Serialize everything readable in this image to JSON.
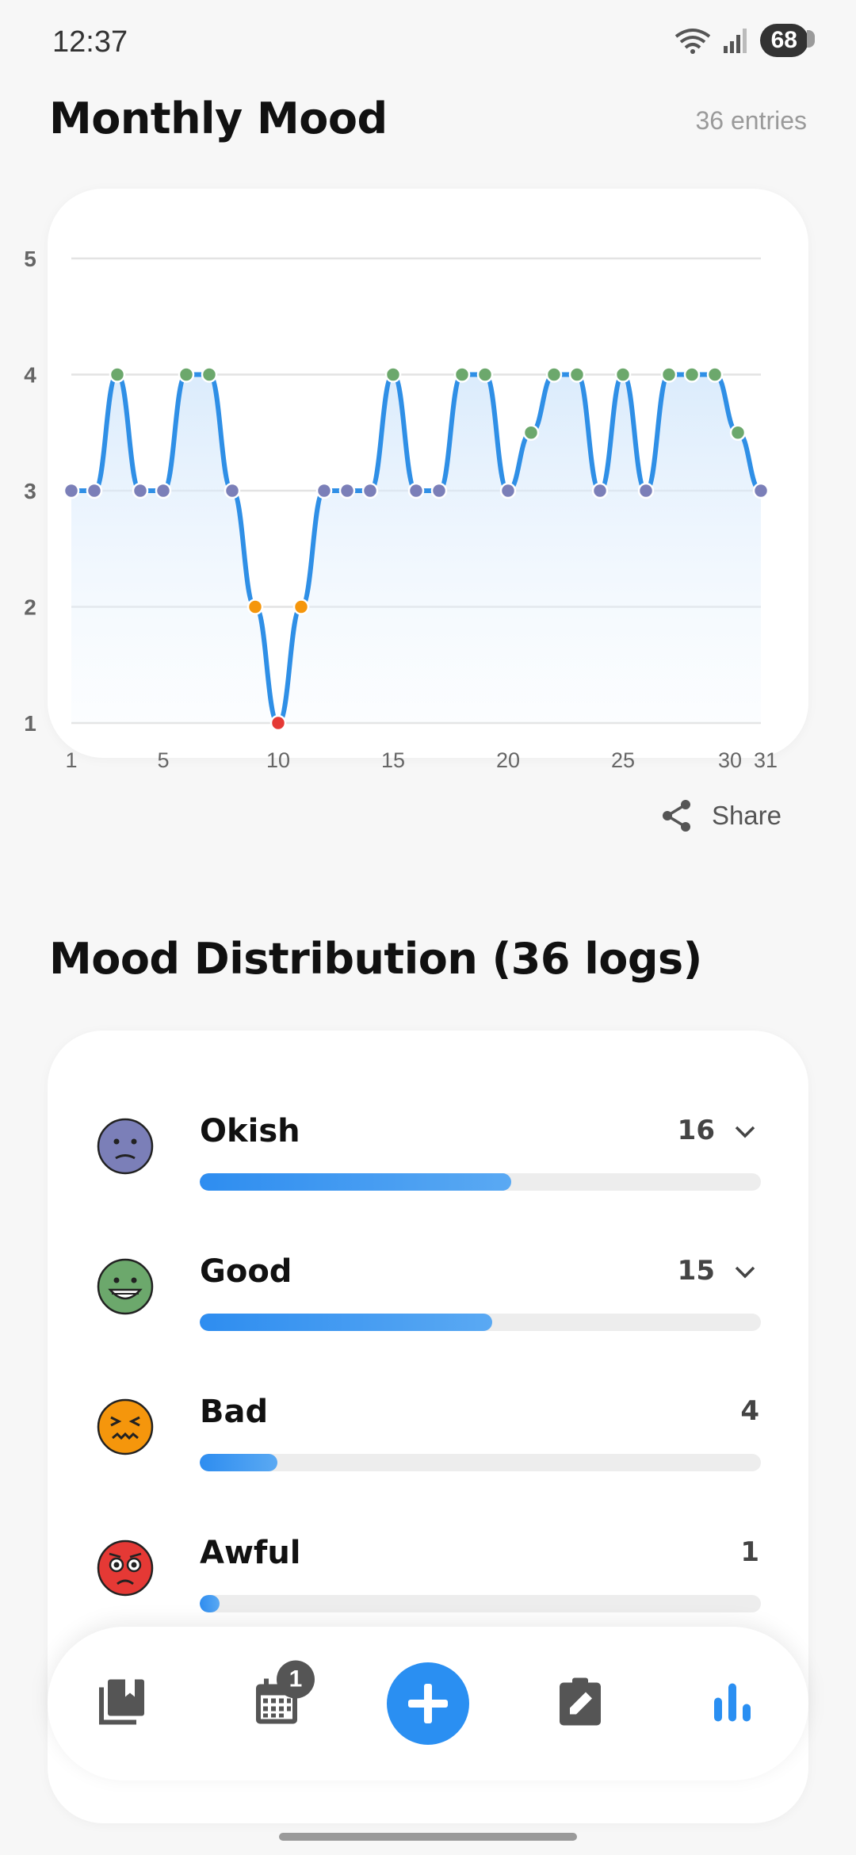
{
  "status_bar": {
    "time": "12:37",
    "battery": "68"
  },
  "header": {
    "title": "Monthly Mood",
    "entries": "36 entries"
  },
  "chart_data": {
    "type": "line",
    "title": "",
    "xlabel": "",
    "ylabel": "",
    "x_ticks": [
      1,
      5,
      10,
      15,
      20,
      25,
      30,
      31
    ],
    "y_ticks": [
      1,
      2,
      3,
      4,
      5
    ],
    "xlim": [
      1,
      31
    ],
    "ylim": [
      1,
      5
    ],
    "grid": true,
    "smooth": true,
    "line_color": "#2f8fe6",
    "mood_colors": {
      "1": "#e53935",
      "2": "#f5960c",
      "3": "#7b7fb8",
      "4": "#6ca86c"
    },
    "points": [
      {
        "x": 1,
        "y": 3
      },
      {
        "x": 2,
        "y": 3
      },
      {
        "x": 3,
        "y": 4
      },
      {
        "x": 4,
        "y": 3
      },
      {
        "x": 5,
        "y": 3
      },
      {
        "x": 6,
        "y": 4
      },
      {
        "x": 7,
        "y": 4
      },
      {
        "x": 8,
        "y": 3
      },
      {
        "x": 9,
        "y": 2
      },
      {
        "x": 10,
        "y": 1
      },
      {
        "x": 11,
        "y": 2
      },
      {
        "x": 12,
        "y": 3
      },
      {
        "x": 13,
        "y": 3
      },
      {
        "x": 14,
        "y": 3
      },
      {
        "x": 15,
        "y": 4
      },
      {
        "x": 16,
        "y": 3
      },
      {
        "x": 17,
        "y": 3
      },
      {
        "x": 18,
        "y": 4
      },
      {
        "x": 19,
        "y": 4
      },
      {
        "x": 20,
        "y": 3
      },
      {
        "x": 21,
        "y": 3.5
      },
      {
        "x": 22,
        "y": 4
      },
      {
        "x": 23,
        "y": 4
      },
      {
        "x": 24,
        "y": 3
      },
      {
        "x": 25,
        "y": 4
      },
      {
        "x": 26,
        "y": 3
      },
      {
        "x": 27,
        "y": 4
      },
      {
        "x": 28,
        "y": 4
      },
      {
        "x": 29,
        "y": 4
      },
      {
        "x": 30,
        "y": 3.5
      },
      {
        "x": 31,
        "y": 3
      }
    ]
  },
  "share": {
    "label": "Share"
  },
  "distribution": {
    "title": "Mood Distribution (36 logs)",
    "max_count": 36,
    "items": [
      {
        "label": "Okish",
        "count": "16",
        "value": 16,
        "face": "okish",
        "color": "#7b7fb8",
        "expandable": true
      },
      {
        "label": "Good",
        "count": "15",
        "value": 15,
        "face": "good",
        "color": "#6ca86c",
        "expandable": true
      },
      {
        "label": "Bad",
        "count": "4",
        "value": 4,
        "face": "bad",
        "color": "#f5960c",
        "expandable": false
      },
      {
        "label": "Awful",
        "count": "1",
        "value": 1,
        "face": "awful",
        "color": "#e53935",
        "expandable": false
      }
    ]
  },
  "bottom_nav": {
    "calendar_badge": "1",
    "items": [
      "journal-icon",
      "calendar-icon",
      "add-icon",
      "edit-note-icon",
      "stats-icon"
    ],
    "active_color": "#2a8ff2"
  }
}
